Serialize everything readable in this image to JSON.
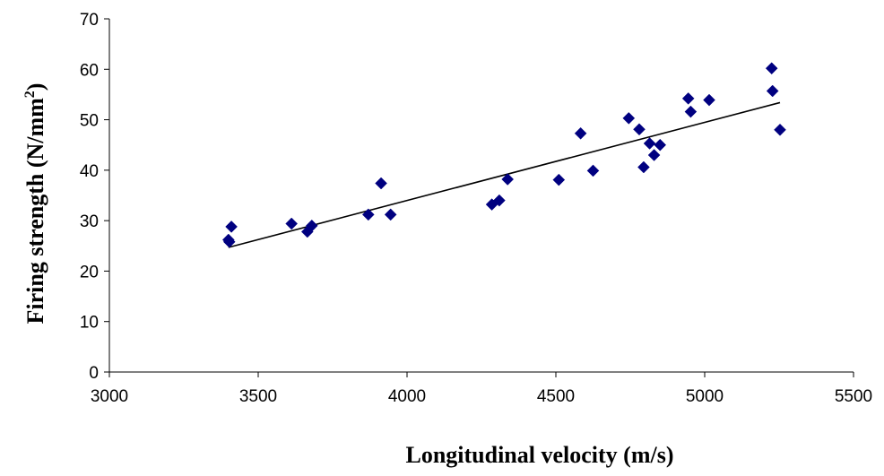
{
  "chart_data": {
    "type": "scatter",
    "xlabel": "Longitudinal velocity (m/s)",
    "ylabel": {
      "main": "Firing strength (N/mm",
      "sup": "2",
      "end": ")"
    },
    "xlim": [
      3000,
      5500
    ],
    "ylim": [
      0,
      70
    ],
    "x_ticks": [
      "3000",
      "3500",
      "4000",
      "4500",
      "5000",
      "5500"
    ],
    "y_ticks": [
      "0",
      "10",
      "20",
      "30",
      "40",
      "50",
      "60",
      "70"
    ],
    "grid": false,
    "legend": "none",
    "marker_color": "#000080",
    "trendline_color": "#000000",
    "series": [
      {
        "points": [
          [
            3400,
            26.2
          ],
          [
            3403,
            25.8
          ],
          [
            3410,
            28.8
          ],
          [
            3612,
            29.4
          ],
          [
            3665,
            27.8
          ],
          [
            3680,
            29.0
          ],
          [
            3870,
            31.2
          ],
          [
            3913,
            37.4
          ],
          [
            3945,
            31.2
          ],
          [
            4285,
            33.2
          ],
          [
            4310,
            34.0
          ],
          [
            4338,
            38.2
          ],
          [
            4510,
            38.1
          ],
          [
            4583,
            47.3
          ],
          [
            4625,
            39.9
          ],
          [
            4745,
            50.3
          ],
          [
            4780,
            48.1
          ],
          [
            4795,
            40.6
          ],
          [
            4815,
            45.3
          ],
          [
            4830,
            43.0
          ],
          [
            4850,
            45.0
          ],
          [
            4945,
            54.2
          ],
          [
            4953,
            51.6
          ],
          [
            5015,
            53.9
          ],
          [
            5225,
            60.2
          ],
          [
            5228,
            55.7
          ],
          [
            5253,
            48.0
          ]
        ]
      }
    ],
    "trendline": {
      "x": [
        3400,
        5253
      ],
      "y": [
        24.7,
        53.4
      ]
    }
  }
}
